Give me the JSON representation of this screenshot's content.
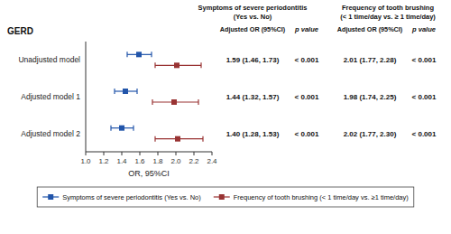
{
  "chart_data": {
    "type": "forest",
    "title": "GERD",
    "x_label": "OR, 95%CI",
    "categories": [
      "Unadjusted model",
      "Adjusted model 1",
      "Adjusted model 2"
    ],
    "xlim": [
      1.0,
      2.4
    ],
    "xticks": [
      {
        "value": 1.0,
        "label": "1.0"
      },
      1.2,
      1.4,
      1.6,
      1.8,
      {
        "value": 2.0,
        "label": "2.0"
      },
      2.2,
      2.4
    ],
    "grid": false,
    "legend": "bottom",
    "p_header": "p value",
    "p_value": "< 0.001",
    "series": [
      {
        "name": "Symptoms of severe periodontitis (Yes vs. No)",
        "color": "#2255AA",
        "marker": "square",
        "values": [
          1.59,
          1.44,
          1.4
        ],
        "ci_low": [
          1.46,
          1.32,
          1.28
        ],
        "ci_high": [
          1.73,
          1.57,
          1.53
        ],
        "value_labels": [
          "1.59 (1.46, 1.73)",
          "1.44 (1.32, 1.57)",
          "1.40 (1.28, 1.53)"
        ],
        "table_header": [
          "Symptoms of severe periodontitis",
          "(Yes vs. No)",
          "Adjusted OR (95%CI)"
        ]
      },
      {
        "name": "Frequency of tooth brushing (< 1 time/day vs. ≥1 time/day)",
        "color": "#993333",
        "marker": "square",
        "values": [
          2.01,
          1.98,
          2.02
        ],
        "ci_low": [
          1.77,
          1.74,
          1.77
        ],
        "ci_high": [
          2.28,
          2.25,
          2.3
        ],
        "value_labels": [
          "2.01 (1.77, 2.28)",
          "1.98 (1.74, 2.25)",
          "2.02 (1.77, 2.30)"
        ],
        "table_header": [
          "Frequency of tooth brushing",
          "(< 1 time/day vs. ≥ 1 time/day)",
          "Adjusted OR (95%CI)"
        ]
      }
    ]
  }
}
